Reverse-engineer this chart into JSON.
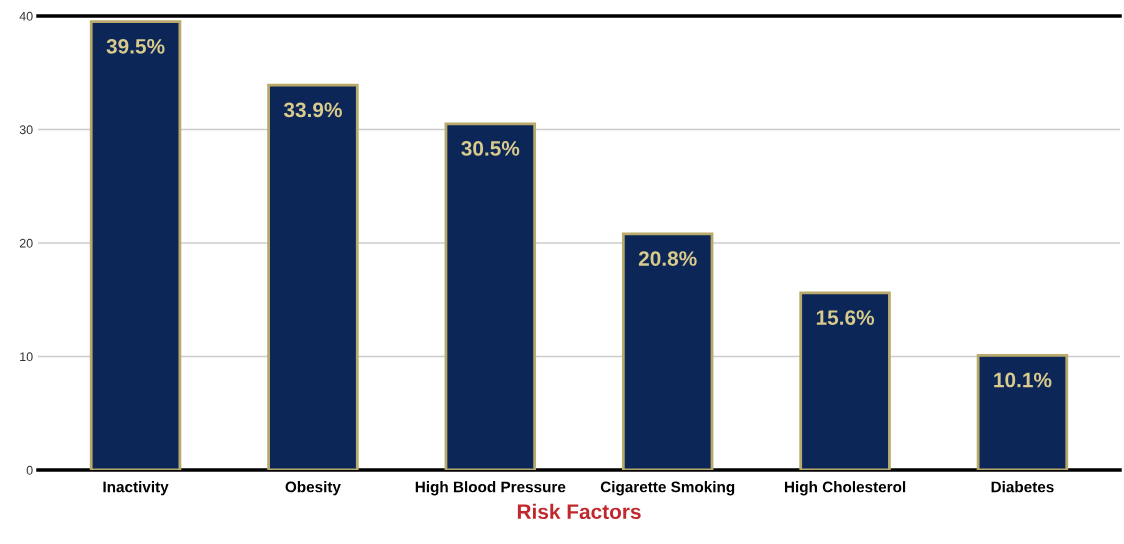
{
  "chart_data": {
    "type": "bar",
    "xlabel": "Risk Factors",
    "categories": [
      "Inactivity",
      "Obesity",
      "High Blood Pressure",
      "Cigarette Smoking",
      "High Cholesterol",
      "Diabetes"
    ],
    "values": [
      39.5,
      33.9,
      30.5,
      20.8,
      15.6,
      10.1
    ],
    "value_labels": [
      "39.5%",
      "33.9%",
      "30.5%",
      "20.8%",
      "15.6%",
      "10.1%"
    ],
    "color": "#0b2657",
    "ylim": [
      0,
      40
    ],
    "yticks": [
      0,
      10,
      20,
      30,
      40
    ],
    "grid": "y",
    "legend": false
  }
}
